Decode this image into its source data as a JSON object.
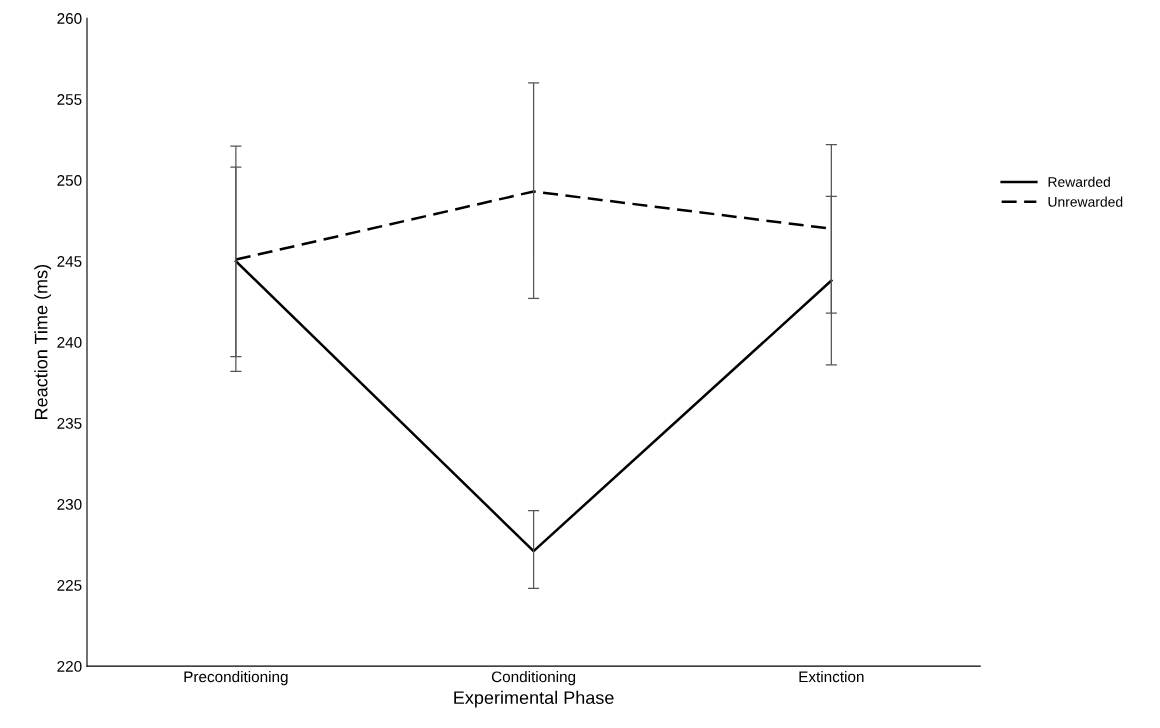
{
  "chart_data": {
    "type": "line",
    "xlabel": "Experimental Phase",
    "ylabel": "Reaction Time (ms)",
    "categories": [
      "Preconditioning",
      "Conditioning",
      "Extinction"
    ],
    "series": [
      {
        "name": "Rewarded",
        "color": "#000000",
        "line_style": "solid",
        "values": [
          245.0,
          227.1,
          243.8
        ],
        "errors": [
          [
            238.2,
            252.1
          ],
          [
            224.8,
            229.6
          ],
          [
            238.6,
            249.0
          ]
        ]
      },
      {
        "name": "Unrewarded",
        "color": "#000000",
        "line_style": "dashed",
        "values": [
          245.1,
          249.3,
          247.0
        ],
        "errors": [
          [
            239.1,
            250.8
          ],
          [
            242.7,
            256.0
          ],
          [
            241.8,
            252.2
          ]
        ]
      }
    ],
    "ylim": [
      220,
      260
    ],
    "yticks": [
      220,
      225,
      230,
      235,
      240,
      245,
      250,
      255,
      260
    ],
    "grid": false,
    "legend": "right",
    "marker": "none"
  }
}
